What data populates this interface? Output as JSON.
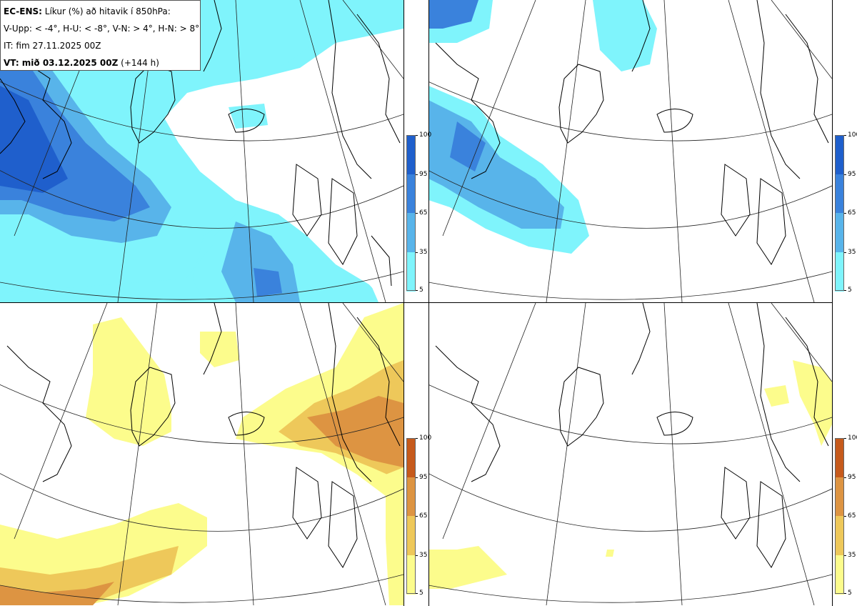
{
  "header": {
    "model": "EC-ENS:",
    "title": "Líkur (%) að hitavik í 850hPa:",
    "thresholds": "V-Upp: < -4°, H-U: < -8°, V-N: > 4°, H-N: > 8°",
    "it_line": "IT: fim 27.11.2025 00Z",
    "vt_label": "VT: mið 03.12.2025 00Z",
    "vt_offset": "(+144 h)"
  },
  "colorbars": {
    "cold": {
      "labels": [
        "100",
        "95",
        "65",
        "35",
        "5"
      ],
      "colors": [
        "#1f5fcc",
        "#3a82dc",
        "#58b4ea",
        "#7ff4fc"
      ]
    },
    "warm": {
      "labels": [
        "100",
        "95",
        "65",
        "35",
        "5"
      ],
      "colors": [
        "#c65a1c",
        "#dd9442",
        "#eec85a",
        "#fcfc8c"
      ]
    }
  },
  "panels": [
    {
      "id": "upper-left",
      "probability_field": "cold anomaly < -4°",
      "scale": "cold"
    },
    {
      "id": "upper-right",
      "probability_field": "cold anomaly < -8°",
      "scale": "cold"
    },
    {
      "id": "lower-left",
      "probability_field": "warm anomaly > 4°",
      "scale": "warm"
    },
    {
      "id": "lower-right",
      "probability_field": "warm anomaly > 8°",
      "scale": "warm"
    }
  ]
}
